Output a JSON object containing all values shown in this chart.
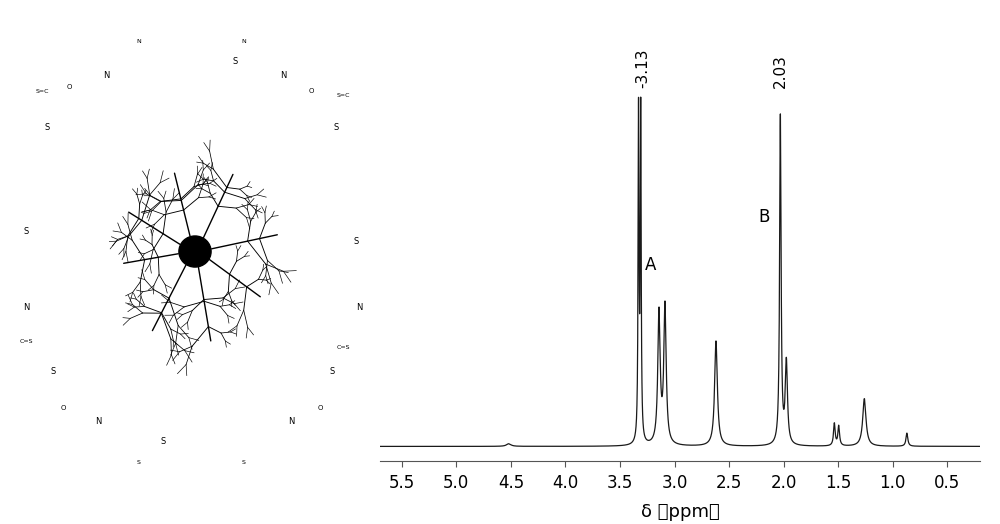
{
  "xlim": [
    5.7,
    0.2
  ],
  "ylim": [
    -0.04,
    1.1
  ],
  "xticks": [
    5.5,
    5.0,
    4.5,
    4.0,
    3.5,
    3.0,
    2.5,
    2.0,
    1.5,
    1.0,
    0.5
  ],
  "xlabel": "δ （ppm）",
  "line_color": "#1a1a1a",
  "background_color": "#ffffff",
  "annotation_313": "-3.13",
  "annotation_203": "2.03",
  "label_A": "A",
  "label_B": "B",
  "figsize": [
    10.0,
    5.24
  ],
  "dpi": 100
}
